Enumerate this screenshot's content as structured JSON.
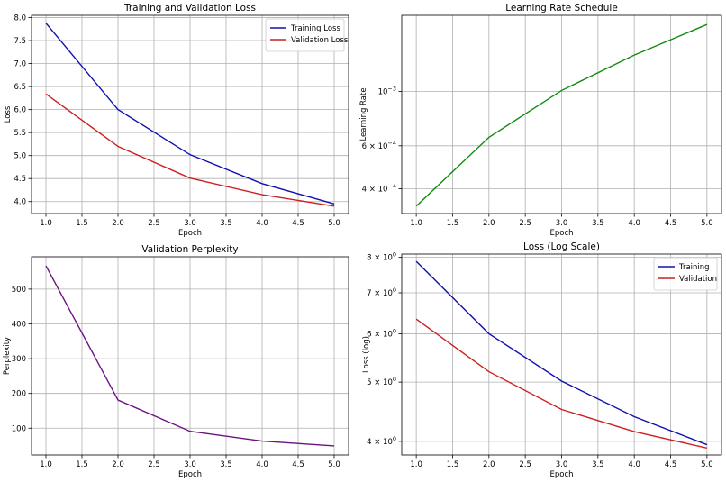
{
  "chart_data": [
    {
      "id": "loss",
      "type": "line",
      "title": "Training and Validation Loss",
      "xlabel": "Epoch",
      "ylabel": "Loss",
      "yscale": "linear",
      "x": [
        1.0,
        2.0,
        3.0,
        4.0,
        5.0
      ],
      "xlim": [
        0.8,
        5.2
      ],
      "ylim": [
        3.74,
        8.05
      ],
      "xticks": [
        1.0,
        1.5,
        2.0,
        2.5,
        3.0,
        3.5,
        4.0,
        4.5,
        5.0
      ],
      "xtick_labels": [
        "1.0",
        "1.5",
        "2.0",
        "2.5",
        "3.0",
        "3.5",
        "4.0",
        "4.5",
        "5.0"
      ],
      "yticks": [
        4.0,
        4.5,
        5.0,
        5.5,
        6.0,
        6.5,
        7.0,
        7.5,
        8.0
      ],
      "ytick_labels": [
        "4.0",
        "4.5",
        "5.0",
        "5.5",
        "6.0",
        "6.5",
        "7.0",
        "7.5",
        "8.0"
      ],
      "grid": true,
      "legend": "top-right",
      "series": [
        {
          "name": "Training Loss",
          "color": "#1010b0",
          "values": [
            7.88,
            6.0,
            5.02,
            4.39,
            3.95
          ]
        },
        {
          "name": "Validation Loss",
          "color": "#cc2020",
          "values": [
            6.34,
            5.2,
            4.51,
            4.15,
            3.9
          ]
        }
      ]
    },
    {
      "id": "lr",
      "type": "line",
      "title": "Learning Rate Schedule",
      "xlabel": "Epoch",
      "ylabel": "Learning Rate",
      "yscale": "log",
      "x": [
        1.0,
        2.0,
        3.0,
        4.0,
        5.0
      ],
      "xlim": [
        0.8,
        5.2
      ],
      "ylim": [
        0.000317,
        0.00205
      ],
      "xticks": [
        1.0,
        1.5,
        2.0,
        2.5,
        3.0,
        3.5,
        4.0,
        4.5,
        5.0
      ],
      "xtick_labels": [
        "1.0",
        "1.5",
        "2.0",
        "2.5",
        "3.0",
        "3.5",
        "4.0",
        "4.5",
        "5.0"
      ],
      "yticks": [
        0.0004,
        0.0006,
        0.001
      ],
      "ytick_labels": [
        {
          "base": "4 × 10",
          "exp": "−4"
        },
        {
          "base": "6 × 10",
          "exp": "−4"
        },
        {
          "base": "10",
          "exp": "−3"
        }
      ],
      "grid": true,
      "legend": "none",
      "series": [
        {
          "name": "Learning Rate",
          "color": "#138a13",
          "values": [
            0.00034,
            0.00065,
            0.00101,
            0.00141,
            0.00188
          ]
        }
      ]
    },
    {
      "id": "ppl",
      "type": "line",
      "title": "Validation Perplexity",
      "xlabel": "Epoch",
      "ylabel": "Perplexity",
      "yscale": "linear",
      "x": [
        1.0,
        2.0,
        3.0,
        4.0,
        5.0
      ],
      "xlim": [
        0.8,
        5.2
      ],
      "ylim": [
        23,
        593
      ],
      "xticks": [
        1.0,
        1.5,
        2.0,
        2.5,
        3.0,
        3.5,
        4.0,
        4.5,
        5.0
      ],
      "xtick_labels": [
        "1.0",
        "1.5",
        "2.0",
        "2.5",
        "3.0",
        "3.5",
        "4.0",
        "4.5",
        "5.0"
      ],
      "yticks": [
        100,
        200,
        300,
        400,
        500
      ],
      "ytick_labels": [
        "100",
        "200",
        "300",
        "400",
        "500"
      ],
      "grid": true,
      "legend": "none",
      "series": [
        {
          "name": "Validation Perplexity",
          "color": "#6b1380",
          "values": [
            567,
            181,
            91,
            63,
            49
          ]
        }
      ]
    },
    {
      "id": "logloss",
      "type": "line",
      "title": "Loss (Log Scale)",
      "xlabel": "Epoch",
      "ylabel": "Loss (log)",
      "yscale": "log",
      "x": [
        1.0,
        2.0,
        3.0,
        4.0,
        5.0
      ],
      "xlim": [
        0.8,
        5.2
      ],
      "ylim": [
        3.8,
        8.1
      ],
      "xticks": [
        1.0,
        1.5,
        2.0,
        2.5,
        3.0,
        3.5,
        4.0,
        4.5,
        5.0
      ],
      "xtick_labels": [
        "1.0",
        "1.5",
        "2.0",
        "2.5",
        "3.0",
        "3.5",
        "4.0",
        "4.5",
        "5.0"
      ],
      "yticks": [
        4,
        5,
        6,
        7,
        8
      ],
      "ytick_labels": [
        {
          "base": "4 × 10",
          "exp": "0"
        },
        {
          "base": "5 × 10",
          "exp": "0"
        },
        {
          "base": "6 × 10",
          "exp": "0"
        },
        {
          "base": "7 × 10",
          "exp": "0"
        },
        {
          "base": "8 × 10",
          "exp": "0"
        }
      ],
      "grid": true,
      "legend": "top-right",
      "series": [
        {
          "name": "Training",
          "color": "#1010b0",
          "values": [
            7.88,
            6.0,
            5.02,
            4.39,
            3.95
          ]
        },
        {
          "name": "Validation",
          "color": "#cc2020",
          "values": [
            6.34,
            5.2,
            4.51,
            4.15,
            3.9
          ]
        }
      ]
    }
  ]
}
